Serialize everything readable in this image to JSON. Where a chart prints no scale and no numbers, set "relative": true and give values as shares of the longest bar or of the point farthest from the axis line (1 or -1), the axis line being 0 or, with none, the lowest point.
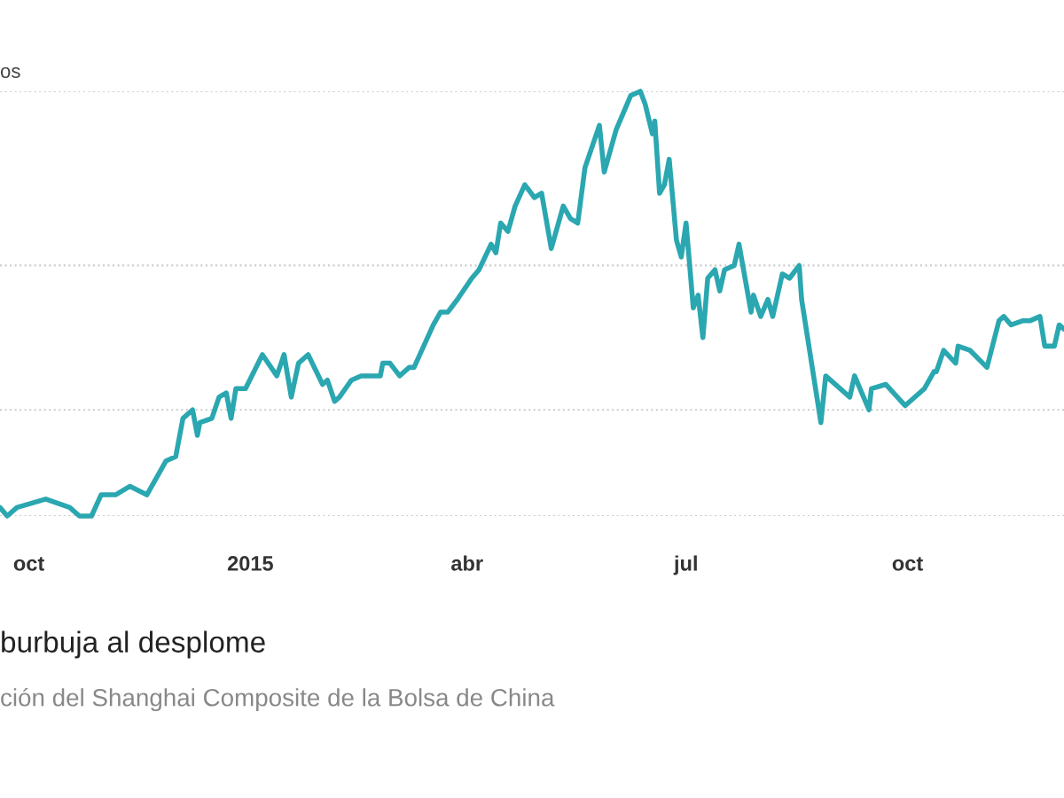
{
  "chart_data": {
    "type": "line",
    "title": "burbuja al desplome",
    "subtitle": "ción del Shanghai Composite de la Bolsa de China",
    "ylabel": "os",
    "relative": true,
    "xlim": [
      "2014-09-19",
      "2015-12-05"
    ],
    "xticks": [
      {
        "value": "2014-10-01",
        "label": "oct"
      },
      {
        "value": "2015-01-01",
        "label": "2015"
      },
      {
        "value": "2015-04-01",
        "label": "abr"
      },
      {
        "value": "2015-07-01",
        "label": "jul"
      },
      {
        "value": "2015-10-01",
        "label": "oct"
      }
    ],
    "ref_lines": [
      {
        "axis": "y",
        "value": 0,
        "color": "#cccccc",
        "line_style": "dotted"
      },
      {
        "axis": "y",
        "value": 0.25,
        "color": "#cccccc",
        "line_style": "dotted"
      },
      {
        "axis": "y",
        "value": 0.59,
        "color": "#cccccc",
        "line_style": "dotted"
      },
      {
        "axis": "y",
        "value": 1,
        "color": "#cccccc",
        "line_style": "dotted"
      }
    ],
    "x": [
      "2014-09-19",
      "2014-09-22",
      "2014-09-26",
      "2014-10-08",
      "2014-10-18",
      "2014-10-22",
      "2014-10-27",
      "2014-10-31",
      "2014-11-06",
      "2014-11-12",
      "2014-11-19",
      "2014-11-27",
      "2014-12-01",
      "2014-12-04",
      "2014-12-08",
      "2014-12-10",
      "2014-12-11",
      "2014-12-16",
      "2014-12-19",
      "2014-12-22",
      "2014-12-24",
      "2014-12-26",
      "2014-12-30",
      "2015-01-06",
      "2015-01-12",
      "2015-01-15",
      "2015-01-18",
      "2015-01-21",
      "2015-01-25",
      "2015-01-31",
      "2015-02-02",
      "2015-02-05",
      "2015-02-07",
      "2015-02-12",
      "2015-02-16",
      "2015-02-24",
      "2015-02-25",
      "2015-02-28",
      "2015-03-04",
      "2015-03-08",
      "2015-03-10",
      "2015-03-14",
      "2015-03-18",
      "2015-03-21",
      "2015-03-24",
      "2015-03-28",
      "2015-04-03",
      "2015-04-06",
      "2015-04-11",
      "2015-04-13",
      "2015-04-15",
      "2015-04-18",
      "2015-04-21",
      "2015-04-25",
      "2015-04-29",
      "2015-05-02",
      "2015-05-06",
      "2015-05-11",
      "2015-05-14",
      "2015-05-17",
      "2015-05-20",
      "2015-05-26",
      "2015-05-28",
      "2015-06-02",
      "2015-06-08",
      "2015-06-12",
      "2015-06-14",
      "2015-06-17",
      "2015-06-18",
      "2015-06-20",
      "2015-06-22",
      "2015-06-24",
      "2015-06-27",
      "2015-06-29",
      "2015-07-01",
      "2015-07-04",
      "2015-07-06",
      "2015-07-08",
      "2015-07-10",
      "2015-07-13",
      "2015-07-15",
      "2015-07-17",
      "2015-07-21",
      "2015-07-23",
      "2015-07-28",
      "2015-07-29",
      "2015-08-01",
      "2015-08-04",
      "2015-08-06",
      "2015-08-10",
      "2015-08-13",
      "2015-08-17",
      "2015-08-18",
      "2015-08-26",
      "2015-08-28",
      "2015-09-07",
      "2015-09-09",
      "2015-09-12",
      "2015-09-15",
      "2015-09-16",
      "2015-09-22",
      "2015-09-30",
      "2015-10-08",
      "2015-10-12",
      "2015-10-13",
      "2015-10-16",
      "2015-10-21",
      "2015-10-22",
      "2015-10-27",
      "2015-11-03",
      "2015-11-08",
      "2015-11-10",
      "2015-11-13",
      "2015-11-18",
      "2015-11-21",
      "2015-11-25",
      "2015-11-27",
      "2015-12-01",
      "2015-12-03",
      "2015-12-05"
    ],
    "series": [
      {
        "color": "#2aa7b0",
        "values": [
          0.02,
          0,
          0.02,
          0.04,
          0.02,
          0,
          0,
          0.05,
          0.05,
          0.07,
          0.05,
          0.13,
          0.14,
          0.23,
          0.25,
          0.19,
          0.22,
          0.23,
          0.28,
          0.29,
          0.23,
          0.3,
          0.3,
          0.38,
          0.33,
          0.38,
          0.28,
          0.36,
          0.38,
          0.31,
          0.32,
          0.27,
          0.28,
          0.32,
          0.33,
          0.33,
          0.36,
          0.36,
          0.33,
          0.35,
          0.35,
          0.4,
          0.45,
          0.48,
          0.48,
          0.51,
          0.56,
          0.58,
          0.64,
          0.62,
          0.69,
          0.67,
          0.73,
          0.78,
          0.75,
          0.76,
          0.63,
          0.73,
          0.7,
          0.69,
          0.82,
          0.92,
          0.81,
          0.91,
          0.99,
          1.0,
          0.97,
          0.9,
          0.93,
          0.76,
          0.78,
          0.84,
          0.65,
          0.61,
          0.69,
          0.49,
          0.52,
          0.42,
          0.56,
          0.58,
          0.53,
          0.58,
          0.59,
          0.64,
          0.48,
          0.52,
          0.47,
          0.51,
          0.47,
          0.57,
          0.56,
          0.59,
          0.51,
          0.22,
          0.33,
          0.28,
          0.33,
          0.29,
          0.25,
          0.3,
          0.31,
          0.26,
          0.3,
          0.34,
          0.34,
          0.39,
          0.36,
          0.4,
          0.39,
          0.35,
          0.46,
          0.47,
          0.45,
          0.46,
          0.46,
          0.47,
          0.4,
          0.4,
          0.45,
          0.44
        ]
      }
    ]
  }
}
